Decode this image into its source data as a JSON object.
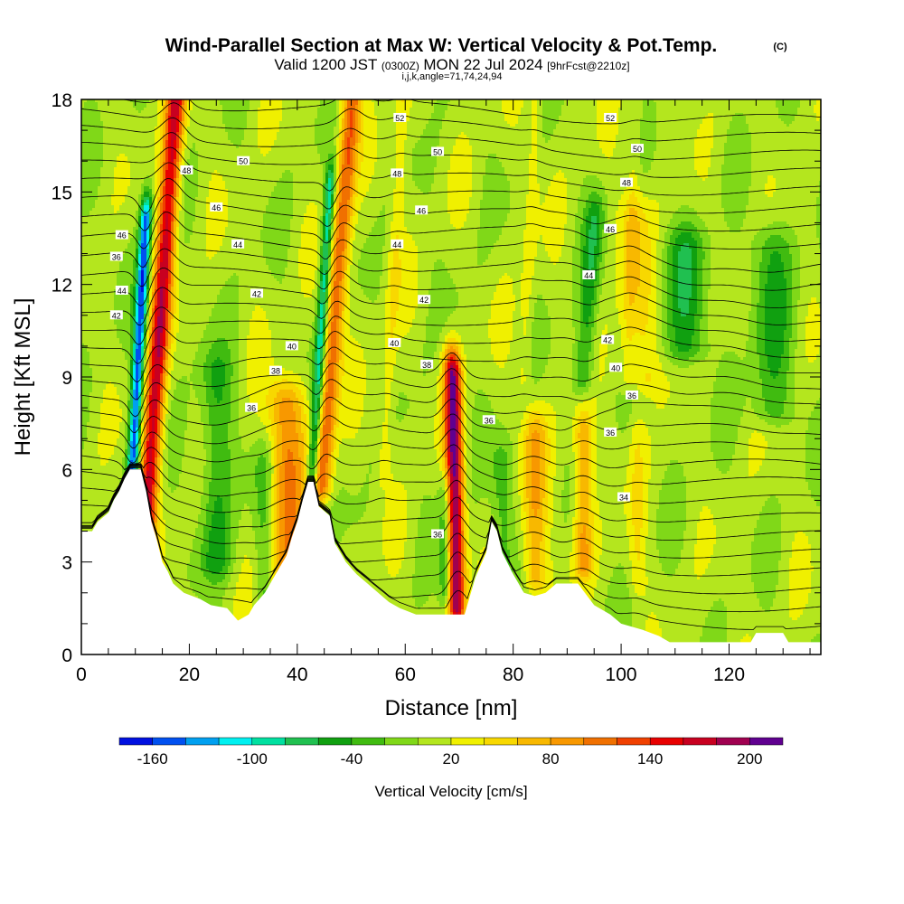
{
  "title": {
    "main": "Wind-Parallel Section at Max W: Vertical Velocity & Pot.Temp.",
    "copyright": "(C)",
    "valid_prefix": "Valid 1200 JST",
    "valid_utc": "(0300Z)",
    "valid_date": "MON 22 Jul 2024",
    "forecast": "[9hrFcst@2210z]",
    "grid_info": "i,j,k,angle=71,74,24,94"
  },
  "chart_data": {
    "type": "heatmap",
    "xlabel": "Distance [nm]",
    "ylabel": "Height [Kft MSL]",
    "xlim": [
      0,
      137
    ],
    "ylim": [
      0,
      18
    ],
    "x_ticks": [
      0,
      20,
      40,
      60,
      80,
      100,
      120
    ],
    "y_ticks": [
      0,
      3,
      6,
      9,
      12,
      15,
      18
    ],
    "x_minor_step": 5,
    "y_minor_step": 1,
    "field": "Vertical Velocity",
    "field_units": "cm/s",
    "colorbar": {
      "label": "Vertical Velocity [cm/s]",
      "min": -180,
      "max": 220,
      "step": 20,
      "tick_values": [
        -160,
        -100,
        -40,
        20,
        80,
        140,
        200
      ],
      "tick_labels": [
        "-160",
        "-100",
        "-40",
        "20",
        "80",
        "140",
        "200"
      ],
      "colors": [
        "#0010e0",
        "#0050f0",
        "#00a0f0",
        "#00f0f0",
        "#00e0a0",
        "#20c050",
        "#10a010",
        "#40bb10",
        "#80d818",
        "#b4e61e",
        "#f0f000",
        "#f8d800",
        "#f8b800",
        "#f89800",
        "#f07000",
        "#f04000",
        "#e80000",
        "#c80020",
        "#a00050",
        "#600090"
      ]
    },
    "updrafts": [
      {
        "x": 11.5,
        "tilt": 0.4,
        "width": 1.8,
        "z_min": 3,
        "z_max": 18,
        "peak": 160
      },
      {
        "x": 44.5,
        "tilt": 0.45,
        "width": 1.8,
        "z_min": 5.5,
        "z_max": 18,
        "peak": 110
      },
      {
        "x": 69.5,
        "tilt": -0.1,
        "width": 1.6,
        "z_min": 1.6,
        "z_max": 9,
        "peak": 190
      },
      {
        "x": 38,
        "tilt": 0,
        "width": 3.5,
        "z_min": 2.5,
        "z_max": 8,
        "peak": 90
      },
      {
        "x": 84,
        "tilt": 0,
        "width": 2.2,
        "z_min": 2.5,
        "z_max": 7,
        "peak": 70
      },
      {
        "x": 93,
        "tilt": 0,
        "width": 1.8,
        "z_min": 3,
        "z_max": 7,
        "peak": 80
      },
      {
        "x": 104,
        "tilt": -0.3,
        "width": 3,
        "z_min": 9,
        "z_max": 14,
        "peak": 40
      },
      {
        "x": 103,
        "tilt": 0,
        "width": 1.5,
        "z_min": 2.5,
        "z_max": 7,
        "peak": 30
      },
      {
        "x": 82,
        "tilt": 0.25,
        "width": 1.3,
        "z_min": 9,
        "z_max": 18,
        "peak": 25
      },
      {
        "x": 56,
        "tilt": 0.3,
        "width": 1.3,
        "z_min": 6,
        "z_max": 18,
        "peak": 30
      },
      {
        "x": 101,
        "tilt": 0.2,
        "width": 1.3,
        "z_min": 9,
        "z_max": 18,
        "peak": 25
      }
    ],
    "downdrafts": [
      {
        "x": 9.5,
        "tilt": 0.3,
        "width": 1.1,
        "z_min": 6,
        "z_max": 14,
        "peak": -160
      },
      {
        "x": 42.7,
        "tilt": 0.35,
        "width": 1.0,
        "z_min": 5.5,
        "z_max": 15,
        "peak": -110
      },
      {
        "x": 67.5,
        "tilt": 0,
        "width": 1.2,
        "z_min": 2,
        "z_max": 5,
        "peak": -60
      },
      {
        "x": 93,
        "tilt": 0.4,
        "width": 1.8,
        "z_min": 9,
        "z_max": 14,
        "peak": -55
      },
      {
        "x": 25,
        "tilt": 0,
        "width": 3,
        "z_min": 3,
        "z_max": 9,
        "peak": -50
      },
      {
        "x": 34,
        "tilt": 0,
        "width": 2,
        "z_min": 2,
        "z_max": 6,
        "peak": -45
      },
      {
        "x": 112,
        "tilt": 0,
        "width": 4,
        "z_min": 10,
        "z_max": 13,
        "peak": -55
      },
      {
        "x": 128,
        "tilt": 0,
        "width": 4,
        "z_min": 8,
        "z_max": 13,
        "peak": -45
      },
      {
        "x": 78,
        "tilt": 0,
        "width": 2,
        "z_min": 2,
        "z_max": 6,
        "peak": -40
      }
    ],
    "terrain_height": [
      [
        0,
        4.0
      ],
      [
        2,
        4.0
      ],
      [
        3,
        4.3
      ],
      [
        5,
        4.6
      ],
      [
        6,
        5.0
      ],
      [
        7,
        5.3
      ],
      [
        8,
        5.7
      ],
      [
        9,
        6.0
      ],
      [
        11,
        6.0
      ],
      [
        12,
        5.3
      ],
      [
        13,
        4.3
      ],
      [
        14,
        3.7
      ],
      [
        15,
        3.0
      ],
      [
        16,
        2.7
      ],
      [
        17,
        2.3
      ],
      [
        19,
        2.0
      ],
      [
        22,
        1.8
      ],
      [
        24,
        1.6
      ],
      [
        27,
        1.5
      ],
      [
        29,
        1.1
      ],
      [
        31,
        1.3
      ],
      [
        32,
        1.6
      ],
      [
        34,
        2.0
      ],
      [
        36,
        2.6
      ],
      [
        38,
        3.2
      ],
      [
        39,
        3.8
      ],
      [
        40,
        4.3
      ],
      [
        41,
        5.0
      ],
      [
        42,
        5.6
      ],
      [
        43,
        5.6
      ],
      [
        44,
        4.8
      ],
      [
        46,
        4.5
      ],
      [
        47,
        3.6
      ],
      [
        49,
        3.0
      ],
      [
        51,
        2.6
      ],
      [
        53,
        2.3
      ],
      [
        55,
        2.0
      ],
      [
        57,
        1.7
      ],
      [
        59,
        1.5
      ],
      [
        62,
        1.3
      ],
      [
        65,
        1.3
      ],
      [
        68,
        1.3
      ],
      [
        71,
        1.3
      ],
      [
        72,
        1.9
      ],
      [
        73,
        2.5
      ],
      [
        75,
        3.3
      ],
      [
        76,
        4.3
      ],
      [
        77,
        4.0
      ],
      [
        78,
        3.3
      ],
      [
        80,
        2.6
      ],
      [
        82,
        2.0
      ],
      [
        84,
        1.9
      ],
      [
        86,
        2.0
      ],
      [
        88,
        2.3
      ],
      [
        92,
        2.3
      ],
      [
        95,
        1.6
      ],
      [
        98,
        1.3
      ],
      [
        100,
        1.0
      ],
      [
        104,
        0.8
      ],
      [
        107,
        0.6
      ],
      [
        109,
        0.4
      ],
      [
        112,
        0.4
      ],
      [
        124,
        0.4
      ],
      [
        125,
        0.7
      ],
      [
        130,
        0.7
      ],
      [
        131,
        0.4
      ],
      [
        137,
        0.4
      ]
    ],
    "theta_contours": {
      "units": "Kelvin-offset labels as printed",
      "levels_visible": [
        34,
        36,
        38,
        40,
        42,
        44,
        46,
        48,
        50,
        52
      ]
    },
    "contour_labels": [
      {
        "text": "52",
        "x": 59,
        "z": 17.4
      },
      {
        "text": "52",
        "x": 98,
        "z": 17.4
      },
      {
        "text": "50",
        "x": 30,
        "z": 16.0
      },
      {
        "text": "50",
        "x": 66,
        "z": 16.3
      },
      {
        "text": "50",
        "x": 103,
        "z": 16.4
      },
      {
        "text": "48",
        "x": 19.5,
        "z": 15.7
      },
      {
        "text": "48",
        "x": 58.5,
        "z": 15.6
      },
      {
        "text": "48",
        "x": 101,
        "z": 15.3
      },
      {
        "text": "46",
        "x": 25,
        "z": 14.5
      },
      {
        "text": "46",
        "x": 63,
        "z": 14.4
      },
      {
        "text": "46",
        "x": 7.5,
        "z": 13.6
      },
      {
        "text": "46",
        "x": 98,
        "z": 13.8
      },
      {
        "text": "44",
        "x": 29,
        "z": 13.3
      },
      {
        "text": "44",
        "x": 58.5,
        "z": 13.3
      },
      {
        "text": "44",
        "x": 94,
        "z": 12.3
      },
      {
        "text": "36",
        "x": 6.5,
        "z": 12.9
      },
      {
        "text": "44",
        "x": 7.5,
        "z": 11.8
      },
      {
        "text": "42",
        "x": 32.5,
        "z": 11.7
      },
      {
        "text": "42",
        "x": 63.5,
        "z": 11.5
      },
      {
        "text": "42",
        "x": 6.5,
        "z": 11.0
      },
      {
        "text": "42",
        "x": 97.5,
        "z": 10.2
      },
      {
        "text": "40",
        "x": 39,
        "z": 10.0
      },
      {
        "text": "40",
        "x": 58,
        "z": 10.1
      },
      {
        "text": "40",
        "x": 99,
        "z": 9.3
      },
      {
        "text": "38",
        "x": 36,
        "z": 9.2
      },
      {
        "text": "38",
        "x": 64,
        "z": 9.4
      },
      {
        "text": "36",
        "x": 31.5,
        "z": 8.0
      },
      {
        "text": "36",
        "x": 75.5,
        "z": 7.6
      },
      {
        "text": "36",
        "x": 102,
        "z": 8.4
      },
      {
        "text": "36",
        "x": 98,
        "z": 7.2
      },
      {
        "text": "34",
        "x": 100.5,
        "z": 5.1
      },
      {
        "text": "36",
        "x": 66,
        "z": 3.9
      }
    ]
  }
}
